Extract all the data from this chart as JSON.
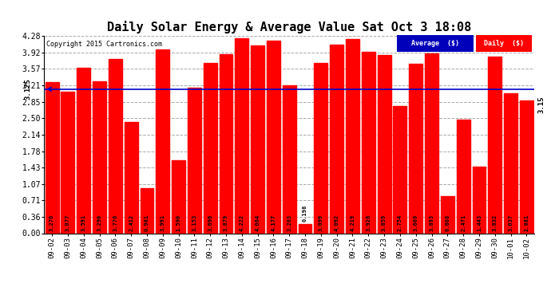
{
  "title": "Daily Solar Energy & Average Value Sat Oct 3 18:08",
  "copyright": "Copyright 2015 Cartronics.com",
  "categories": [
    "09-02",
    "09-03",
    "09-04",
    "09-05",
    "09-06",
    "09-07",
    "09-08",
    "09-09",
    "09-10",
    "09-11",
    "09-12",
    "09-13",
    "09-14",
    "09-15",
    "09-16",
    "09-17",
    "09-18",
    "09-19",
    "09-20",
    "09-21",
    "09-22",
    "09-23",
    "09-24",
    "09-25",
    "09-26",
    "09-27",
    "09-28",
    "09-29",
    "09-30",
    "10-01",
    "10-02"
  ],
  "values": [
    3.276,
    3.077,
    3.591,
    3.29,
    3.776,
    2.412,
    0.981,
    3.991,
    1.59,
    3.153,
    3.696,
    3.879,
    4.222,
    4.064,
    4.177,
    3.203,
    0.198,
    3.699,
    4.092,
    4.219,
    3.926,
    3.859,
    2.754,
    3.669,
    3.893,
    0.808,
    2.471,
    1.443,
    3.832,
    3.037,
    2.881
  ],
  "average": 3.125,
  "bar_color": "#ff0000",
  "avg_line_color": "#0000cc",
  "ylim": [
    0,
    4.28
  ],
  "yticks": [
    0.0,
    0.36,
    0.71,
    1.07,
    1.43,
    1.78,
    2.14,
    2.5,
    2.85,
    3.21,
    3.57,
    3.92,
    4.28
  ],
  "background_color": "#ffffff",
  "plot_bg_color": "#ffffff",
  "grid_color": "#aaaaaa",
  "title_fontsize": 11,
  "legend_avg_color": "#0000bb",
  "legend_daily_color": "#ff0000",
  "last_value_label": "3.15",
  "avg_label": "3.125"
}
